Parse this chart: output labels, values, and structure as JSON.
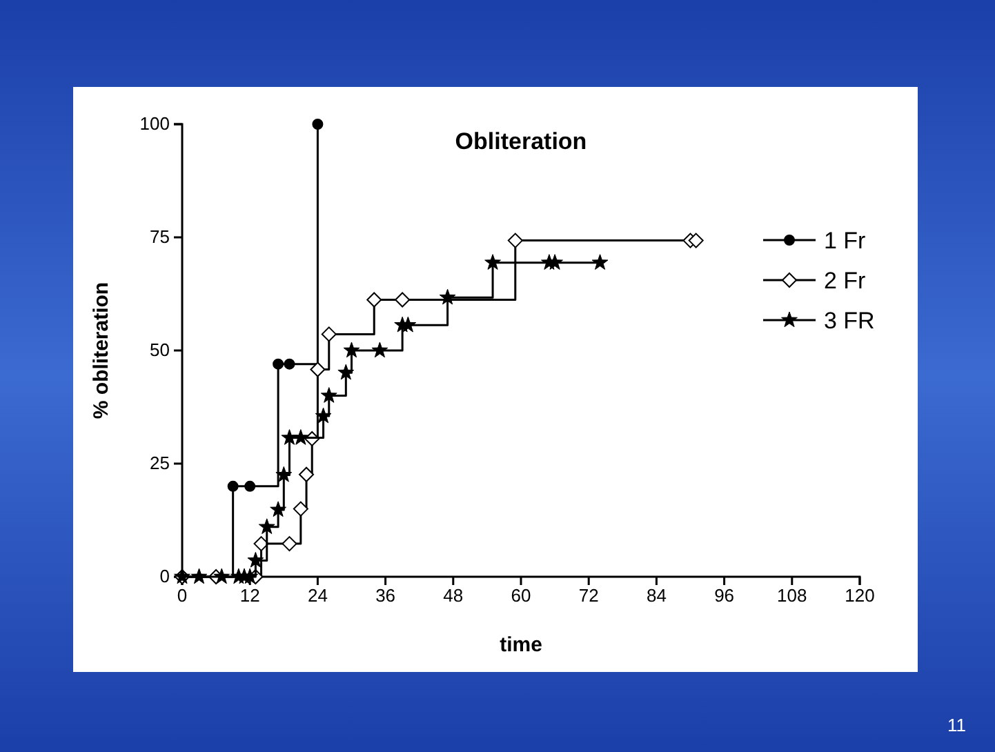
{
  "chart_data": {
    "type": "step",
    "title": "Obliteration",
    "xlabel": "time",
    "ylabel": "% obliteration",
    "xlim": [
      0,
      120
    ],
    "xticks": [
      0,
      12,
      24,
      36,
      48,
      60,
      72,
      84,
      96,
      108,
      120
    ],
    "ylim": [
      0,
      100
    ],
    "yticks": [
      0,
      25,
      50,
      75,
      100
    ],
    "grid": false,
    "legend": "right",
    "annotations": [
      "11"
    ],
    "series": [
      {
        "name": "1 Fr",
        "color": "#000000",
        "marker": "circle",
        "x": [
          0,
          9,
          12,
          17,
          19,
          24
        ],
        "values": [
          0,
          20,
          20,
          47,
          47,
          100
        ]
      },
      {
        "name": "2 Fr",
        "color": "#000000",
        "marker": "diamond",
        "x": [
          0,
          6,
          13,
          14,
          19,
          21,
          22,
          23,
          24,
          26,
          34,
          39,
          59,
          90,
          91
        ],
        "values": [
          0,
          0,
          0,
          7.3,
          7.3,
          15,
          22.6,
          30.5,
          45.8,
          53.6,
          61.2,
          61.2,
          74.3,
          74.3,
          74.3
        ]
      },
      {
        "name": "3 FR",
        "color": "#000000",
        "marker": "star",
        "x": [
          0,
          3,
          7,
          10,
          11,
          12,
          13,
          15,
          17,
          18,
          19,
          21,
          25,
          26,
          29,
          30,
          35,
          39,
          40,
          47,
          55,
          65,
          66,
          74
        ],
        "values": [
          0,
          0,
          0,
          0,
          0,
          0,
          3.6,
          11,
          14.8,
          22.5,
          30.7,
          30.7,
          35.5,
          40,
          45.1,
          50,
          50,
          55.6,
          55.6,
          61.7,
          69.4,
          69.4,
          69.4,
          69.4
        ]
      }
    ]
  }
}
